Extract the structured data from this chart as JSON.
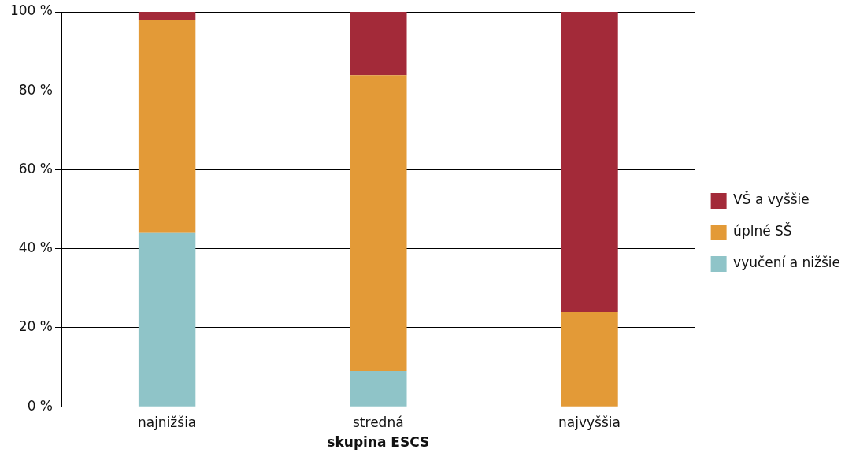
{
  "chart_data": {
    "type": "bar",
    "stacked": true,
    "xlabel": "skupina ESCS",
    "categories": [
      "najnižšia",
      "stredná",
      "najvyššia"
    ],
    "series": [
      {
        "name": "vyučení a nižšie",
        "color": "#8fc4c8",
        "values": [
          44,
          9,
          0
        ]
      },
      {
        "name": "úplné SŠ",
        "color": "#e39a37",
        "values": [
          54,
          75,
          24
        ]
      },
      {
        "name": "VŠ a vyššie",
        "color": "#a32a39",
        "values": [
          2,
          16,
          76
        ]
      }
    ],
    "ylim": [
      0,
      100
    ],
    "yticks": [
      {
        "value": 0,
        "label": "0 %"
      },
      {
        "value": 20,
        "label": "20 %"
      },
      {
        "value": 40,
        "label": "40 %"
      },
      {
        "value": 60,
        "label": "60 %"
      },
      {
        "value": 80,
        "label": "80 %"
      },
      {
        "value": 100,
        "label": "100 %"
      }
    ],
    "grid": "y",
    "legend": "right"
  }
}
